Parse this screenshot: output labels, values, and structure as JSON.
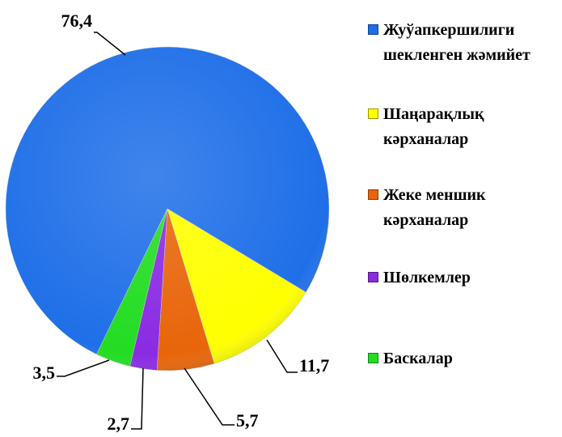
{
  "chart_data": {
    "type": "pie",
    "categories": [
      "Жуўапкершилиги шекленген жәмийет",
      "Шаңарақлық кәрханалар",
      "Жеке меншик кәрханалар",
      "Шөлкемлер",
      "Баскалар"
    ],
    "values": [
      76.4,
      11.7,
      5.7,
      2.7,
      3.5
    ],
    "value_labels": [
      "76,4",
      "11,7",
      "5,7",
      "2,7",
      "3,5"
    ],
    "colors": [
      "#1f6fe8",
      "#ffff00",
      "#e8650a",
      "#8a2be2",
      "#22dd22"
    ],
    "legend": "right"
  }
}
